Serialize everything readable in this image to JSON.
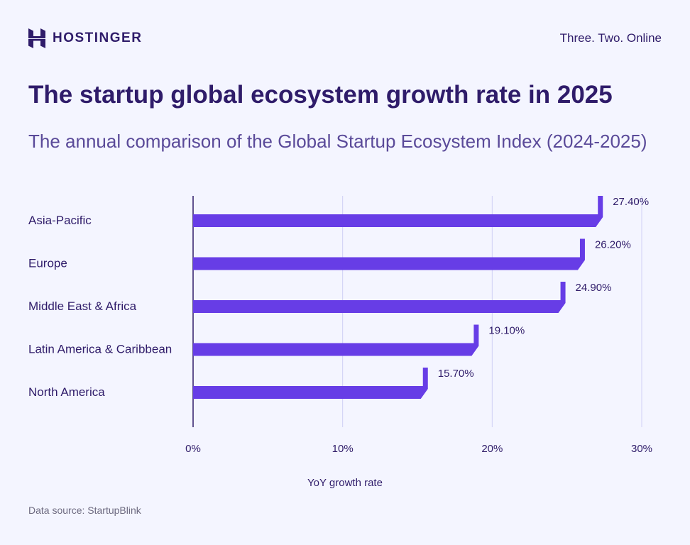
{
  "brand": {
    "name": "HOSTINGER",
    "tagline": "Three. Two. Online"
  },
  "header": {
    "title": "The startup global ecosystem growth rate in 2025",
    "subtitle": "The annual comparison of the Global Startup Ecosystem Index (2024-2025)"
  },
  "footer": {
    "source": "Data source: StartupBlink"
  },
  "colors": {
    "bar": "#673de6",
    "text": "#2f1c6a",
    "grid": "#cfd0f5",
    "background": "#f4f5ff"
  },
  "chart_data": {
    "type": "bar",
    "orientation": "horizontal",
    "categories": [
      "Asia-Pacific",
      "Europe",
      "Middle East & Africa",
      "Latin America & Caribbean",
      "North America"
    ],
    "values": [
      27.4,
      26.2,
      24.9,
      19.1,
      15.7
    ],
    "data_labels": [
      "27.40%",
      "26.20%",
      "24.90%",
      "19.10%",
      "15.70%"
    ],
    "xlabel": "YoY growth rate",
    "xlim": [
      0,
      30
    ],
    "xticks": [
      "0%",
      "10%",
      "20%",
      "30%"
    ],
    "grid": true
  }
}
